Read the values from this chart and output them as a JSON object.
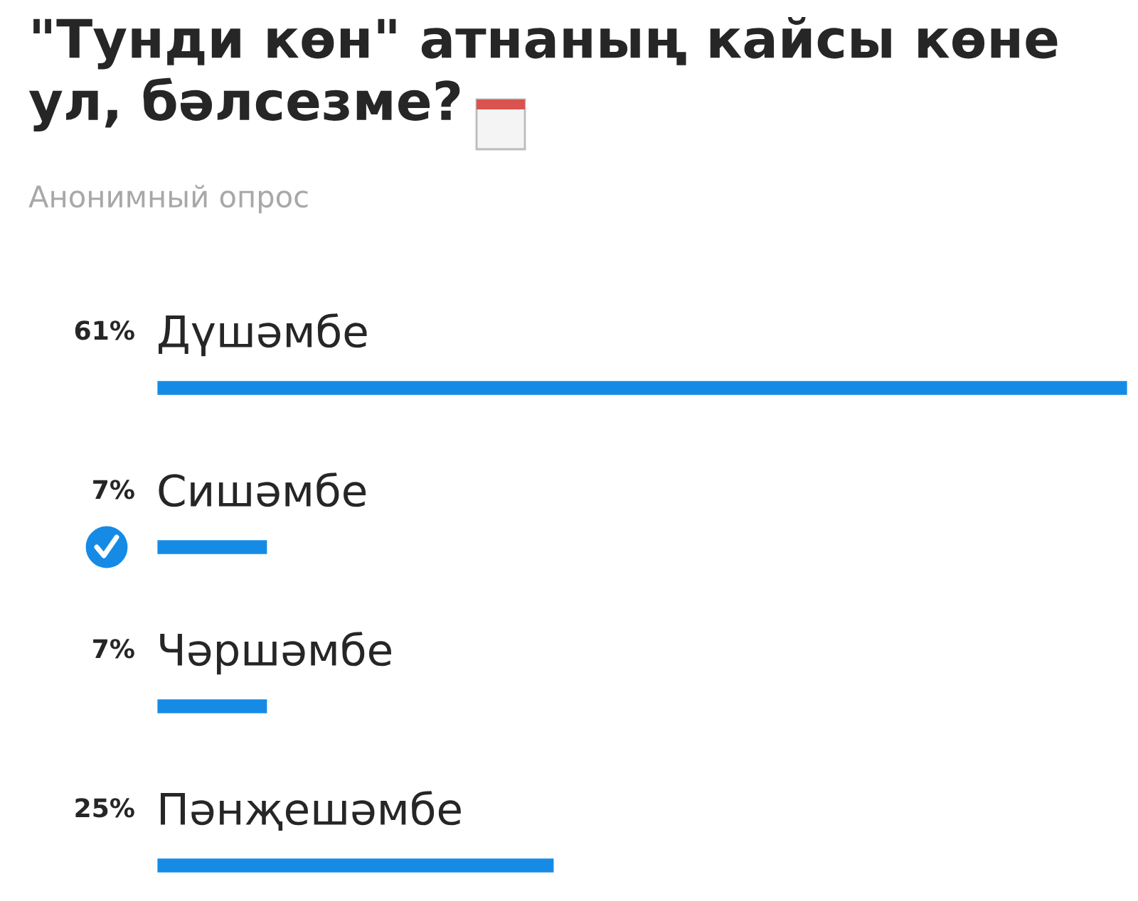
{
  "chart_data": {
    "type": "bar",
    "orientation": "horizontal",
    "title": "\"Тунди көн\" атнаның кайсы көне ул, бәлсезме?",
    "subtitle": "Анонимный опрос",
    "categories": [
      "Дүшәмбе",
      "Сишәмбе",
      "Чәршәмбе",
      "Пәнҗешәмбе"
    ],
    "values": [
      61,
      7,
      7,
      25
    ],
    "value_labels": [
      "61%",
      "7%",
      "7%",
      "25%"
    ],
    "color": "#168be6"
  }
}
